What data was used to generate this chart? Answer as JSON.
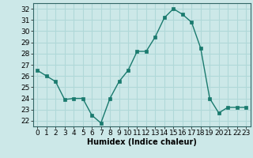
{
  "x": [
    0,
    1,
    2,
    3,
    4,
    5,
    6,
    7,
    8,
    9,
    10,
    11,
    12,
    13,
    14,
    15,
    16,
    17,
    18,
    19,
    20,
    21,
    22,
    23
  ],
  "y": [
    26.5,
    26.0,
    25.5,
    23.9,
    24.0,
    24.0,
    22.5,
    21.8,
    24.0,
    25.5,
    26.5,
    28.2,
    28.2,
    29.5,
    31.2,
    32.0,
    31.5,
    30.8,
    28.5,
    24.0,
    22.7,
    23.2,
    23.2,
    23.2
  ],
  "line_color": "#1a7a6e",
  "marker": "s",
  "marker_size": 2.5,
  "bg_color": "#cce8e8",
  "grid_color": "#b0d8d8",
  "xlabel": "Humidex (Indice chaleur)",
  "ylim": [
    21.5,
    32.5
  ],
  "yticks": [
    22,
    23,
    24,
    25,
    26,
    27,
    28,
    29,
    30,
    31,
    32
  ],
  "xticks": [
    0,
    1,
    2,
    3,
    4,
    5,
    6,
    7,
    8,
    9,
    10,
    11,
    12,
    13,
    14,
    15,
    16,
    17,
    18,
    19,
    20,
    21,
    22,
    23
  ],
  "xlim": [
    -0.5,
    23.5
  ],
  "label_fontsize": 7,
  "tick_fontsize": 6.5
}
